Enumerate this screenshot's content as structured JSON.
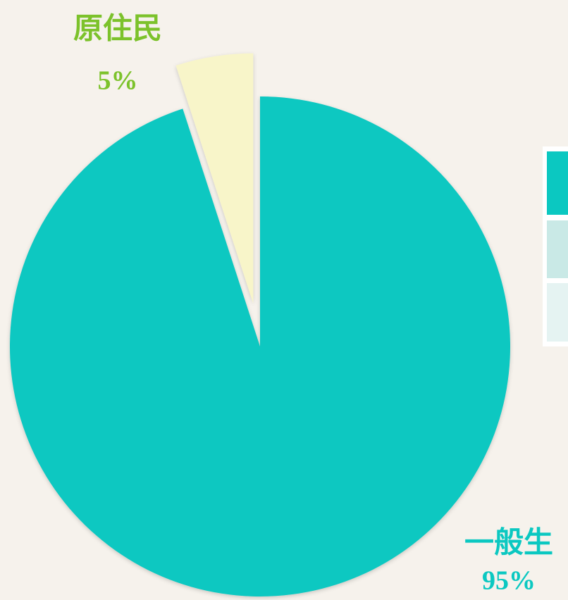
{
  "chart_data": {
    "type": "pie",
    "categories": [
      "一般生",
      "原住民"
    ],
    "values": [
      95,
      5
    ],
    "value_labels": [
      "95%",
      "5%"
    ],
    "colors": [
      "#0bc8c1",
      "#f8f5c9"
    ],
    "label_colors": [
      "#0bc8c1",
      "#7cc22b"
    ]
  }
}
